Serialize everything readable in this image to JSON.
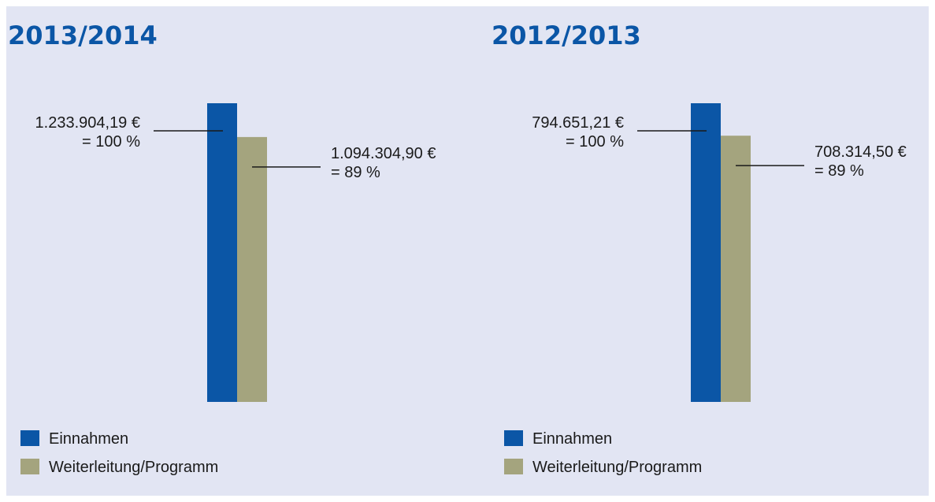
{
  "chart_data": [
    {
      "type": "bar",
      "title": "2013/2014",
      "series": [
        {
          "name": "Einnahmen",
          "color": "#0b56a6",
          "values": [
            1233904.19
          ],
          "value_labels": [
            "1.233.904,19 €"
          ],
          "percents": [
            100
          ],
          "percent_labels": [
            "= 100 %"
          ]
        },
        {
          "name": "Weiterleitung/Programm",
          "color": "#a4a47e",
          "values": [
            1094304.9
          ],
          "value_labels": [
            "1.094.304,90 €"
          ],
          "percents": [
            89
          ],
          "percent_labels": [
            "= 89 %"
          ]
        }
      ]
    },
    {
      "type": "bar",
      "title": "2012/2013",
      "series": [
        {
          "name": "Einnahmen",
          "color": "#0b56a6",
          "values": [
            794651.21
          ],
          "value_labels": [
            "794.651,21 €"
          ],
          "percents": [
            100
          ],
          "percent_labels": [
            "= 100 %"
          ]
        },
        {
          "name": "Weiterleitung/Programm",
          "color": "#a4a47e",
          "values": [
            708314.5
          ],
          "value_labels": [
            "708.314,50 €"
          ],
          "percents": [
            89
          ],
          "percent_labels": [
            "= 89 %"
          ]
        }
      ]
    }
  ]
}
